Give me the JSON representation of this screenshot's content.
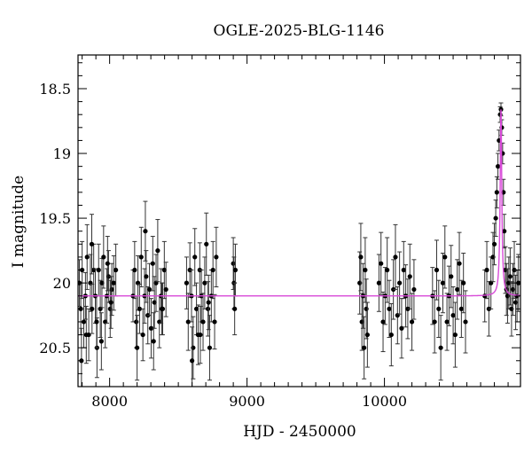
{
  "chart_data": {
    "type": "scatter",
    "title": "OGLE-2025-BLG-1146",
    "xlabel": "HJD - 2450000",
    "ylabel": "I magnitude",
    "xlim": [
      7770,
      10990
    ],
    "ylim": [
      20.8,
      18.24
    ],
    "y_inverted": true,
    "grid": false,
    "x_ticks": [
      8000,
      9000,
      10000
    ],
    "x_tick_labels": [
      "8000",
      "9000",
      "10000"
    ],
    "y_ticks": [
      18.5,
      19,
      19.5,
      20,
      20.5
    ],
    "y_tick_labels": [
      "18.5",
      "19",
      "19.5",
      "20",
      "20.5"
    ],
    "colors": {
      "points": "#000000",
      "errorbars": "#333333",
      "model": "#d84ad8"
    },
    "series": [
      {
        "kind": "points_with_errors",
        "x": [
          7780,
          7790,
          7800,
          7812,
          7824,
          7836,
          7848,
          7860,
          7872,
          7884,
          7896,
          7908,
          7920,
          7932,
          7944,
          7956,
          7968,
          7980,
          7992,
          8004,
          8016,
          8030,
          8045,
          7795,
          7830,
          7870,
          7905,
          7940,
          7985,
          8010,
          8170,
          8182,
          8194,
          8206,
          8218,
          8230,
          8242,
          8254,
          8266,
          8278,
          8290,
          8302,
          8314,
          8326,
          8338,
          8350,
          8362,
          8374,
          8386,
          8398,
          8410,
          8200,
          8260,
          8320,
          8380,
          8560,
          8572,
          8584,
          8596,
          8608,
          8620,
          8632,
          8644,
          8656,
          8668,
          8680,
          8692,
          8704,
          8716,
          8728,
          8740,
          8752,
          8764,
          8776,
          8600,
          8660,
          8720,
          8900,
          8905,
          8910,
          8915,
          9820,
          9828,
          9836,
          9844,
          9852,
          9860,
          9868,
          9876,
          9960,
          9975,
          9990,
          10005,
          10020,
          10035,
          10050,
          10065,
          10080,
          10095,
          10110,
          10125,
          10140,
          10155,
          10170,
          10185,
          10200,
          10215,
          10350,
          10365,
          10380,
          10395,
          10410,
          10425,
          10440,
          10455,
          10470,
          10485,
          10500,
          10515,
          10530,
          10545,
          10560,
          10575,
          10590,
          10730,
          10745,
          10760,
          10775,
          10790,
          10800,
          10810,
          10818,
          10826,
          10834,
          10842,
          10848,
          10854,
          10860,
          10866,
          10872,
          10880,
          10888,
          10896,
          10905,
          10915,
          10925,
          10935,
          10945,
          10955,
          10965,
          10975
        ],
        "y": [
          20.0,
          20.2,
          19.9,
          20.3,
          20.1,
          19.8,
          20.4,
          20.0,
          20.2,
          19.9,
          20.1,
          20.5,
          19.9,
          20.2,
          20.0,
          19.8,
          20.3,
          20.1,
          19.95,
          20.2,
          20.05,
          20.0,
          19.9,
          20.6,
          20.4,
          19.7,
          20.3,
          20.45,
          19.85,
          20.15,
          20.1,
          19.9,
          20.3,
          20.0,
          20.2,
          19.8,
          20.4,
          20.1,
          19.95,
          20.25,
          20.05,
          20.35,
          19.85,
          20.15,
          20.0,
          19.75,
          20.3,
          20.1,
          20.2,
          19.9,
          20.05,
          20.5,
          19.6,
          20.45,
          20.2,
          20.0,
          20.3,
          19.9,
          20.1,
          20.5,
          19.8,
          20.2,
          20.4,
          19.9,
          20.1,
          20.3,
          20.0,
          19.7,
          20.2,
          20.5,
          20.1,
          19.9,
          20.3,
          19.8,
          20.6,
          20.4,
          20.15,
          19.85,
          20.0,
          20.2,
          19.9,
          20.0,
          19.8,
          20.3,
          20.1,
          20.5,
          19.9,
          20.2,
          20.4,
          20.0,
          19.85,
          20.3,
          20.1,
          19.9,
          20.2,
          20.4,
          20.05,
          19.8,
          20.25,
          20.0,
          20.35,
          19.9,
          20.1,
          20.2,
          19.95,
          20.3,
          20.05,
          20.1,
          20.3,
          19.9,
          20.2,
          20.5,
          20.0,
          19.8,
          20.3,
          20.1,
          19.95,
          20.25,
          20.4,
          20.05,
          19.85,
          20.2,
          20.0,
          20.3,
          20.1,
          19.9,
          20.2,
          20.0,
          19.8,
          19.7,
          19.5,
          19.3,
          19.1,
          18.9,
          18.7,
          18.66,
          18.8,
          19.0,
          19.3,
          19.6,
          19.9,
          20.05,
          20.1,
          20.0,
          19.95,
          20.2,
          20.05,
          19.9,
          20.15,
          20.1,
          20.0
        ],
        "err": [
          0.18,
          0.2,
          0.22,
          0.2,
          0.18,
          0.25,
          0.2,
          0.22,
          0.19,
          0.2,
          0.21,
          0.23,
          0.2,
          0.22,
          0.19,
          0.24,
          0.2,
          0.21,
          0.2,
          0.22,
          0.2,
          0.21,
          0.2,
          0.25,
          0.22,
          0.23,
          0.2,
          0.22,
          0.21,
          0.2,
          0.2,
          0.22,
          0.2,
          0.21,
          0.19,
          0.23,
          0.2,
          0.21,
          0.2,
          0.22,
          0.2,
          0.23,
          0.21,
          0.2,
          0.22,
          0.24,
          0.2,
          0.21,
          0.2,
          0.22,
          0.21,
          0.25,
          0.23,
          0.22,
          0.2,
          0.2,
          0.22,
          0.21,
          0.2,
          0.24,
          0.22,
          0.2,
          0.23,
          0.21,
          0.2,
          0.22,
          0.2,
          0.24,
          0.21,
          0.25,
          0.2,
          0.22,
          0.21,
          0.23,
          0.26,
          0.22,
          0.21,
          0.2,
          0.2,
          0.2,
          0.2,
          0.24,
          0.26,
          0.22,
          0.25,
          0.24,
          0.25,
          0.23,
          0.25,
          0.22,
          0.24,
          0.23,
          0.22,
          0.25,
          0.22,
          0.24,
          0.23,
          0.25,
          0.22,
          0.24,
          0.23,
          0.22,
          0.24,
          0.23,
          0.25,
          0.22,
          0.23,
          0.22,
          0.24,
          0.23,
          0.22,
          0.25,
          0.23,
          0.24,
          0.22,
          0.23,
          0.24,
          0.22,
          0.25,
          0.23,
          0.24,
          0.22,
          0.23,
          0.24,
          0.2,
          0.22,
          0.21,
          0.2,
          0.19,
          0.16,
          0.14,
          0.12,
          0.1,
          0.08,
          0.06,
          0.05,
          0.06,
          0.08,
          0.1,
          0.13,
          0.18,
          0.2,
          0.21,
          0.2,
          0.22,
          0.21,
          0.2,
          0.22,
          0.21,
          0.2,
          0.22
        ]
      },
      {
        "kind": "model_curve",
        "baseline": 20.1,
        "peak_mag": 18.66,
        "t0": 10848,
        "tE": 7
      }
    ]
  }
}
